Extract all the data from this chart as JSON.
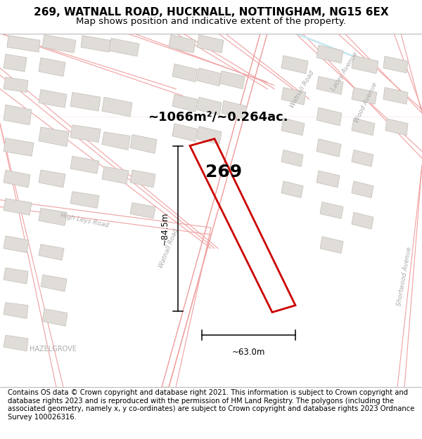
{
  "title_line1": "269, WATNALL ROAD, HUCKNALL, NOTTINGHAM, NG15 6EX",
  "title_line2": "Map shows position and indicative extent of the property.",
  "footer_text": "Contains OS data © Crown copyright and database right 2021. This information is subject to Crown copyright and database rights 2023 and is reproduced with the permission of HM Land Registry. The polygons (including the associated geometry, namely x, y co-ordinates) are subject to Crown copyright and database rights 2023 Ordnance Survey 100026316.",
  "map_bg": "#ffffff",
  "road_color": "#f0a0a0",
  "road_lw": 0.8,
  "building_fill": "#e0ddd8",
  "building_outline": "#c8c4be",
  "building_lw": 0.6,
  "highlight_outline": "#cc0000",
  "highlight_fill": "none",
  "area_text": "~1066m²/~0.264ac.",
  "number_text": "269",
  "dim_height": "~84.5m",
  "dim_width": "~63.0m",
  "road_label_color": "#aaaaaa",
  "place_label": "HAZELGROVE",
  "title_fontsize": 11,
  "subtitle_fontsize": 9.5,
  "footer_fontsize": 7.2,
  "water_color": "#c8e8f0"
}
